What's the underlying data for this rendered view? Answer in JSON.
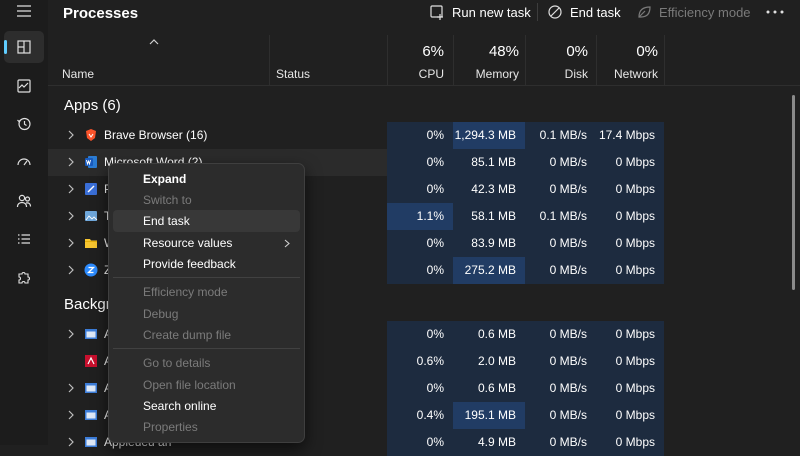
{
  "toolbar": {
    "title": "Processes",
    "run_new_task": "Run new task",
    "end_task": "End task",
    "efficiency_mode": "Efficiency mode"
  },
  "columns": {
    "name": "Name",
    "status": "Status",
    "cpu_pct": "6%",
    "cpu": "CPU",
    "memory_pct": "48%",
    "memory": "Memory",
    "disk_pct": "0%",
    "disk": "Disk",
    "network_pct": "0%",
    "network": "Network"
  },
  "sections": {
    "apps": "Apps (6)",
    "background": "Backgr"
  },
  "apps": [
    {
      "name": "Brave Browser (16)",
      "cpu": "0%",
      "memory": "1,294.3 MB",
      "disk": "0.1 MB/s",
      "network": "17.4 Mbps",
      "icon": "brave-icon"
    },
    {
      "name": "Microsoft Word (2)",
      "cpu": "0%",
      "memory": "85.1 MB",
      "disk": "0 MB/s",
      "network": "0 Mbps",
      "icon": "word-icon"
    },
    {
      "name": "P",
      "cpu": "0%",
      "memory": "42.3 MB",
      "disk": "0 MB/s",
      "network": "0 Mbps",
      "icon": "app-icon"
    },
    {
      "name": "T",
      "cpu": "1.1%",
      "memory": "58.1 MB",
      "disk": "0.1 MB/s",
      "network": "0 Mbps",
      "icon": "image-icon"
    },
    {
      "name": "W",
      "cpu": "0%",
      "memory": "83.9 MB",
      "disk": "0 MB/s",
      "network": "0 Mbps",
      "icon": "folder-icon"
    },
    {
      "name": "Z",
      "cpu": "0%",
      "memory": "275.2 MB",
      "disk": "0 MB/s",
      "network": "0 Mbps",
      "icon": "z-icon"
    }
  ],
  "background": [
    {
      "name": "A",
      "cpu": "0%",
      "memory": "0.6 MB",
      "disk": "0 MB/s",
      "network": "0 Mbps"
    },
    {
      "name": "A",
      "cpu": "0.6%",
      "memory": "2.0 MB",
      "disk": "0 MB/s",
      "network": "0 Mbps"
    },
    {
      "name": "A",
      "cpu": "0%",
      "memory": "0.6 MB",
      "disk": "0 MB/s",
      "network": "0 Mbps"
    },
    {
      "name": "A",
      "cpu": "0.4%",
      "memory": "195.1 MB",
      "disk": "0 MB/s",
      "network": "0 Mbps"
    },
    {
      "name": "Appleueu an",
      "cpu": "0%",
      "memory": "4.9 MB",
      "disk": "0 MB/s",
      "network": "0 Mbps"
    }
  ],
  "context_menu": {
    "expand": "Expand",
    "switch_to": "Switch to",
    "end_task": "End task",
    "resource_values": "Resource values",
    "provide_feedback": "Provide feedback",
    "efficiency_mode": "Efficiency mode",
    "debug": "Debug",
    "create_dump_file": "Create dump file",
    "go_to_details": "Go to details",
    "open_file_location": "Open file location",
    "search_online": "Search online",
    "properties": "Properties"
  },
  "colors": {
    "background": "#202020",
    "heat_low": "#1d2b3f",
    "heat_high": "#213c64",
    "accent": "#60cdff"
  }
}
